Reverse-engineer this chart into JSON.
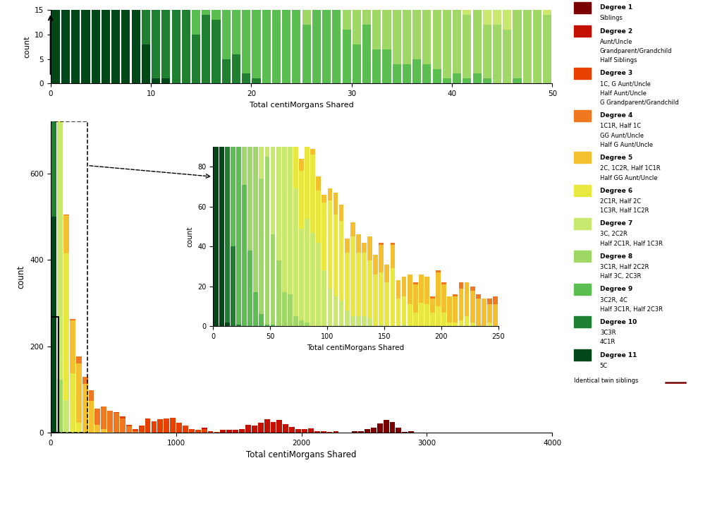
{
  "degree_colors": {
    "1": "#7B0000",
    "2": "#C41000",
    "3": "#E84000",
    "4": "#F07820",
    "5": "#F5C030",
    "6": "#E8E840",
    "7": "#C8E870",
    "8": "#A0D868",
    "9": "#5ABE50",
    "10": "#1E8030",
    "11": "#004818"
  },
  "degree_labels": {
    "1": [
      "Degree 1",
      "Siblings"
    ],
    "2": [
      "Degree 2",
      "Aunt/Uncle",
      "Grandparent/Grandchild",
      "Half Siblings"
    ],
    "3": [
      "Degree 3",
      "1C, G Aunt/Uncle",
      "Half Aunt/Uncle",
      "G Grandparent/Grandchild"
    ],
    "4": [
      "Degree 4",
      "1C1R, Half 1C",
      "GG Aunt/Uncle",
      "Half G Aunt/Uncle"
    ],
    "5": [
      "Degree 5",
      "2C, 1C2R, Half 1C1R",
      "Half GG Aunt/Uncle"
    ],
    "6": [
      "Degree 6",
      "2C1R, Half 2C",
      "1C3R, Half 1C2R"
    ],
    "7": [
      "Degree 7",
      "3C, 2C2R",
      "Half 2C1R, Half 1C3R"
    ],
    "8": [
      "Degree 8",
      "3C1R, Half 2C2R",
      "Half 3C, 2C3R"
    ],
    "9": [
      "Degree 9",
      "3C2R, 4C",
      "Half 3C1R, Half 2C3R"
    ],
    "10": [
      "Degree 10",
      "3C3R",
      "4C1R"
    ],
    "11": [
      "Degree 11",
      "5C"
    ]
  }
}
